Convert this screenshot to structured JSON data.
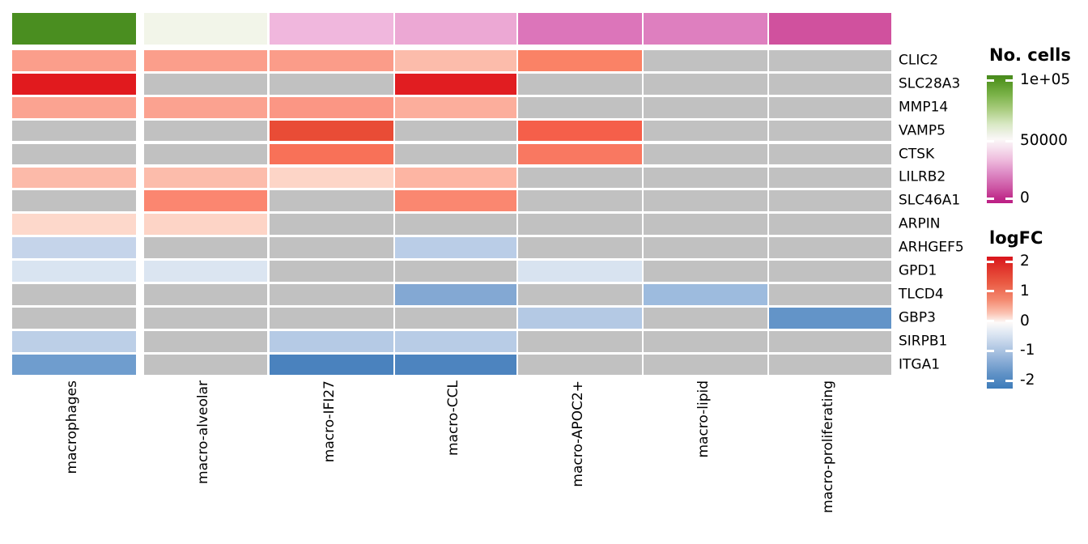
{
  "figure": {
    "background_color": "#ffffff"
  },
  "legends": {
    "no_cells": {
      "title": "No. cells",
      "tick_labels": [
        "1e+05",
        "50000",
        "0"
      ],
      "top_color": "#47891f",
      "mid_color": "#fbf8f7",
      "bottom_color": "#bc1e85"
    },
    "logfc": {
      "title": "logFC",
      "tick_labels": [
        "2",
        "1",
        "0",
        "-1",
        "-2"
      ],
      "top_color": "#d9151c",
      "mid_color": "#fdfaf9",
      "bottom_color": "#3e7cba"
    }
  },
  "chart_data": {
    "type": "heatmap",
    "columns": [
      "macrophages",
      "macro-alveolar",
      "macro-IFI27",
      "macro-CCL",
      "macro-APOC2+",
      "macro-lipid",
      "macro-proliferating"
    ],
    "genes": [
      "CLIC2",
      "SLC28A3",
      "MMP14",
      "VAMP5",
      "CTSK",
      "LILRB2",
      "SLC46A1",
      "ARPIN",
      "ARHGEF5",
      "GPD1",
      "TLCD4",
      "GBP3",
      "SIRPB1",
      "ITGA1"
    ],
    "na_color": "#c1c1c1",
    "na_meaning": "gray cell = no significant logFC value shown",
    "annotation": {
      "legend": "No. cells",
      "scale_range": [
        0,
        100000
      ],
      "colors": [
        "#4a8e20",
        "#f2f5e9",
        "#f0b7dd",
        "#eca8d4",
        "#dc75ba",
        "#de7fbf",
        "#d0519e"
      ],
      "approx_values": [
        95000,
        52000,
        30000,
        27000,
        18000,
        18000,
        9000
      ]
    },
    "logfc": {
      "legend": "logFC",
      "scale_range": [
        -2,
        2
      ],
      "cell_colors": [
        [
          "#fb9e8b",
          "#fb9e8b",
          "#fb9c89",
          "#fcbcab",
          "#fa8266",
          null,
          null
        ],
        [
          "#e11a1e",
          null,
          null,
          "#e11d21",
          null,
          null,
          null
        ],
        [
          "#fba391",
          "#fba290",
          "#fb9684",
          "#fcae9c",
          null,
          null,
          null
        ],
        [
          null,
          null,
          "#e94c36",
          null,
          "#f55f4a",
          null,
          null
        ],
        [
          null,
          null,
          "#f87158",
          null,
          "#f97861",
          null,
          null
        ],
        [
          "#fcbaa9",
          "#fcbcab",
          "#fdd5c7",
          "#fdb5a3",
          null,
          null,
          null
        ],
        [
          null,
          "#fb8670",
          null,
          "#fa8770",
          null,
          null,
          null
        ],
        [
          "#fdd8cb",
          "#fdd4c6",
          null,
          null,
          null,
          null,
          null
        ],
        [
          "#c5d4ea",
          null,
          null,
          "#bacde7",
          null,
          null,
          null
        ],
        [
          "#d9e4f1",
          "#dbe5f1",
          null,
          null,
          "#d8e3f0",
          null,
          null
        ],
        [
          null,
          null,
          null,
          "#83a8d3",
          null,
          "#9dbbde",
          null
        ],
        [
          null,
          null,
          null,
          null,
          "#b4c9e4",
          null,
          "#6394c8"
        ],
        [
          "#bccfe7",
          null,
          "#b5cae5",
          "#b8cce6",
          null,
          null,
          null
        ],
        [
          "#6f9dce",
          null,
          "#4a82be",
          "#4d84bf",
          null,
          null,
          null
        ]
      ],
      "approx_values": [
        [
          0.9,
          0.9,
          0.9,
          0.6,
          1.1,
          null,
          null
        ],
        [
          2.0,
          null,
          null,
          2.0,
          null,
          null,
          null
        ],
        [
          0.85,
          0.85,
          0.95,
          0.75,
          null,
          null,
          null
        ],
        [
          null,
          null,
          1.6,
          null,
          1.5,
          null,
          null
        ],
        [
          null,
          null,
          1.3,
          null,
          1.25,
          null,
          null
        ],
        [
          0.6,
          0.6,
          0.35,
          0.65,
          null,
          null,
          null
        ],
        [
          null,
          1.1,
          null,
          1.1,
          null,
          null,
          null
        ],
        [
          0.35,
          0.4,
          null,
          null,
          null,
          null,
          null
        ],
        [
          -0.5,
          null,
          null,
          -0.6,
          null,
          null,
          null
        ],
        [
          -0.3,
          -0.3,
          null,
          null,
          -0.3,
          null,
          null
        ],
        [
          null,
          null,
          null,
          -1.1,
          null,
          -0.8,
          null
        ],
        [
          null,
          null,
          null,
          null,
          -0.65,
          null,
          -1.5
        ],
        [
          -0.6,
          null,
          -0.65,
          -0.6,
          null,
          null,
          null
        ],
        [
          -1.3,
          null,
          -1.8,
          -1.75,
          null,
          null,
          null
        ]
      ]
    }
  }
}
